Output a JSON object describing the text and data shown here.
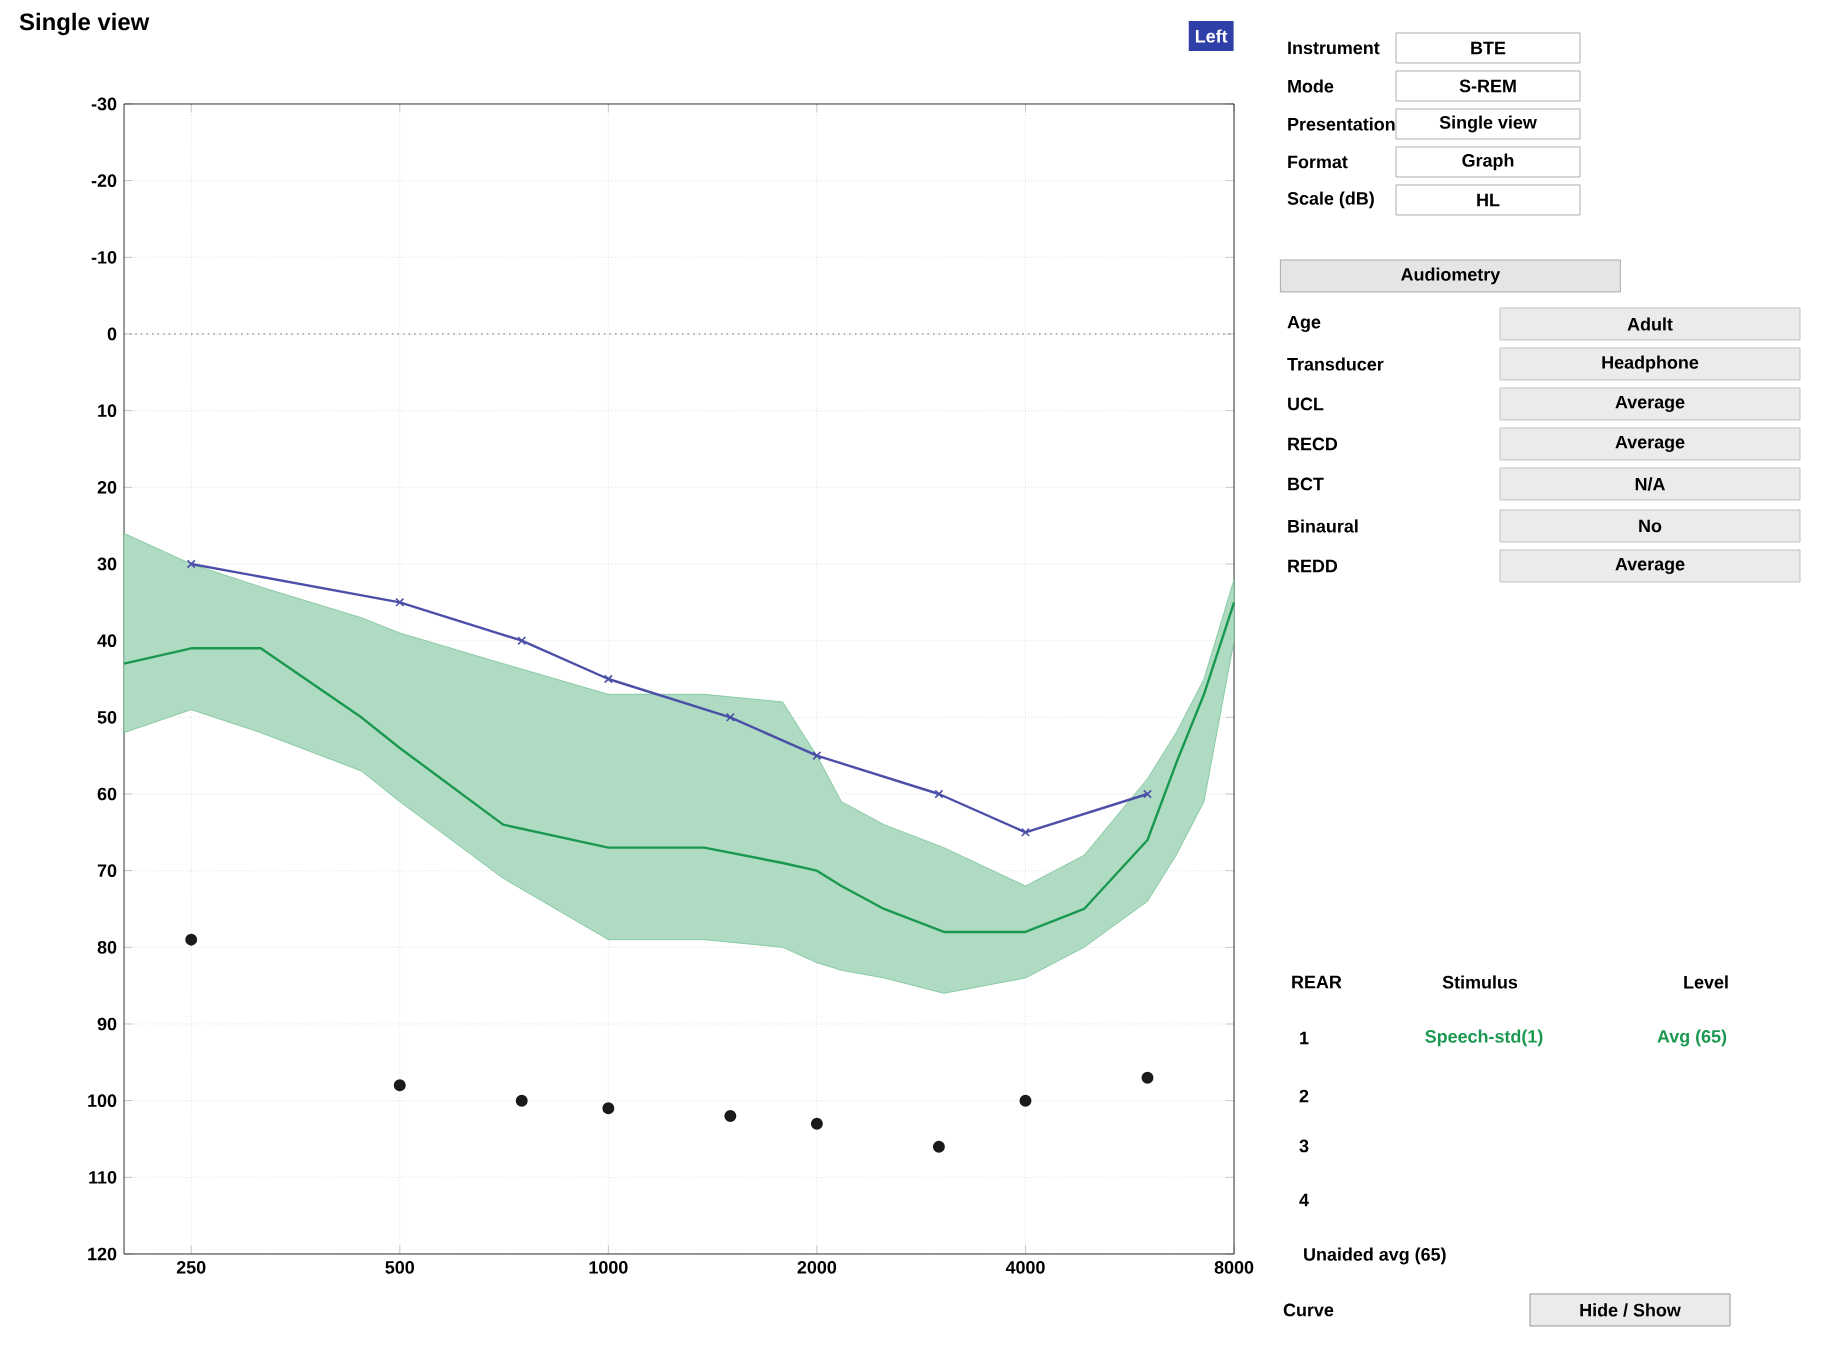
{
  "chart_data": {
    "type": "line",
    "title": "Single view",
    "xlim": [
      200,
      8000
    ],
    "ylim": [
      120,
      -30
    ],
    "xticks": [
      250,
      500,
      1000,
      2000,
      4000,
      8000
    ],
    "yticks": [
      -30,
      -20,
      -10,
      0,
      10,
      20,
      30,
      40,
      50,
      60,
      70,
      80,
      90,
      100,
      110,
      120
    ],
    "log": "x",
    "grid": true,
    "series": [
      {
        "type": "line",
        "color": "#1a9850",
        "marker": "none",
        "x": [
          200,
          250,
          315,
          440,
          500,
          705,
          1000,
          1375,
          1785,
          2000,
          2170,
          2500,
          3050,
          4000,
          4860,
          6000,
          6600,
          7240,
          8000
        ],
        "values": [
          43,
          41,
          41,
          50,
          54,
          64,
          67,
          67,
          69,
          70,
          72,
          75,
          78,
          78,
          75,
          66,
          56,
          47,
          35
        ],
        "lower": [
          26,
          30,
          33,
          37,
          39,
          43,
          47,
          47,
          48,
          55,
          61,
          64,
          67,
          72,
          68,
          58,
          52,
          45,
          32
        ],
        "upper": [
          52,
          49,
          52,
          57,
          61,
          71,
          79,
          79,
          80,
          82,
          83,
          84,
          86,
          84,
          80,
          74,
          68,
          61,
          40
        ]
      },
      {
        "type": "line",
        "color": "#4b4fa8",
        "marker": "cross",
        "x": [
          250,
          500,
          750,
          1000,
          1500,
          2000,
          3000,
          4000,
          6000
        ],
        "values": [
          30,
          35,
          40,
          45,
          50,
          55,
          60,
          65,
          60
        ]
      },
      {
        "type": "scatter",
        "color": "#1a1a1a",
        "marker": "circle",
        "x": [
          250,
          500,
          750,
          1000,
          1500,
          2000,
          3000,
          4000,
          6000
        ],
        "values": [
          79,
          98,
          100,
          101,
          102,
          103,
          106,
          100,
          97
        ]
      }
    ],
    "ref_lines": [
      {
        "axis": "y",
        "value": 0,
        "line_style": "dotted",
        "color": "#9a9a9a"
      }
    ],
    "annotations": [
      "Left",
      "Instrument",
      "BTE",
      "Mode",
      "S-REM",
      "Presentation",
      "Single view",
      "Format",
      "Graph",
      "Scale (dB)",
      "HL",
      "Audiometry",
      "Age",
      "Adult",
      "Transducer",
      "Headphone",
      "UCL",
      "Average",
      "RECD",
      "Average",
      "BCT",
      "N/A",
      "Binaural",
      "No",
      "REDD",
      "Average",
      "REAR",
      "Stimulus",
      "Level",
      "1",
      "Speech-std(1)",
      "Avg (65)",
      "2",
      "3",
      "4",
      "Unaided avg (65)",
      "Curve",
      "Hide / Show"
    ]
  }
}
